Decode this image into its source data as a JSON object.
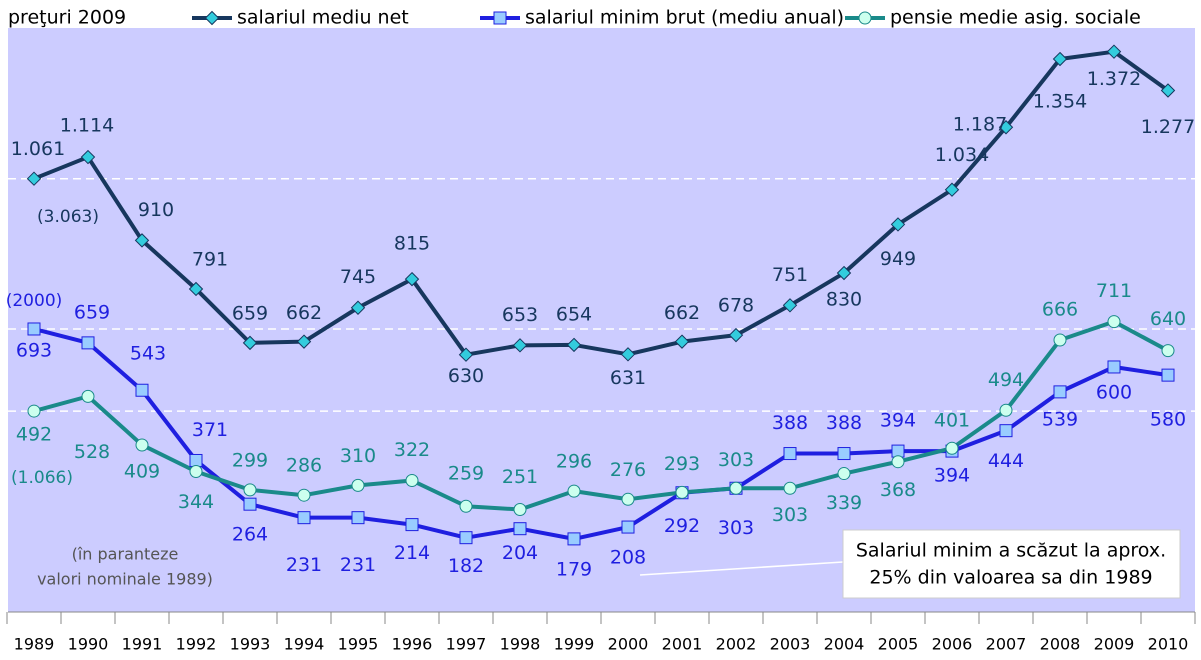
{
  "chart_data": {
    "type": "line",
    "subtitle": "preţuri 2009",
    "categories": [
      "1989",
      "1990",
      "1991",
      "1992",
      "1993",
      "1994",
      "1995",
      "1996",
      "1997",
      "1998",
      "1999",
      "2000",
      "2001",
      "2002",
      "2003",
      "2004",
      "2005",
      "2006",
      "2007",
      "2008",
      "2009",
      "2010"
    ],
    "ylim": [
      0,
      1430
    ],
    "reference_lines": true,
    "series": [
      {
        "name": "salariul mediu net",
        "color": "#17375e",
        "marker": "diamond",
        "marker_color": "#33ccdd",
        "label_color": "#17375e",
        "values": [
          1061,
          1114,
          910,
          791,
          659,
          662,
          745,
          815,
          630,
          653,
          654,
          631,
          662,
          678,
          751,
          830,
          949,
          1034,
          1187,
          1354,
          1372,
          1277
        ],
        "value_labels": [
          "1.061",
          "1.114",
          "910",
          "791",
          "659",
          "662",
          "745",
          "815",
          "630",
          "653",
          "654",
          "631",
          "662",
          "678",
          "751",
          "830",
          "949",
          "1.034",
          "1.187",
          "1.354",
          "1.372",
          "1.277"
        ]
      },
      {
        "name": "salariul minim brut (mediu anual)",
        "color": "#1f1fe0",
        "marker": "square",
        "marker_color": "#99ccff",
        "label_color": "#1f1fe0",
        "values": [
          693,
          659,
          543,
          371,
          264,
          231,
          231,
          214,
          182,
          204,
          179,
          208,
          292,
          303,
          388,
          388,
          394,
          394,
          444,
          539,
          600,
          580
        ]
      },
      {
        "name": "pensie medie asig. sociale",
        "color": "#1a8a8a",
        "marker": "circle",
        "marker_color": "#ccffee",
        "label_color": "#1a8a8a",
        "values": [
          492,
          528,
          409,
          344,
          299,
          286,
          310,
          322,
          259,
          251,
          296,
          276,
          293,
          303,
          303,
          339,
          368,
          401,
          494,
          666,
          711,
          640
        ]
      }
    ],
    "annotations": [
      {
        "text": "(3.063)",
        "series": 0
      },
      {
        "text": "(2000)",
        "series": 1
      },
      {
        "text": "(1.066)",
        "series": 2
      },
      {
        "text": [
          "(în paranteze",
          "valori nominale 1989)"
        ]
      },
      {
        "text": [
          "Salariul minim a scăzut la aprox.",
          "25% din valoarea sa din 1989"
        ]
      }
    ]
  }
}
